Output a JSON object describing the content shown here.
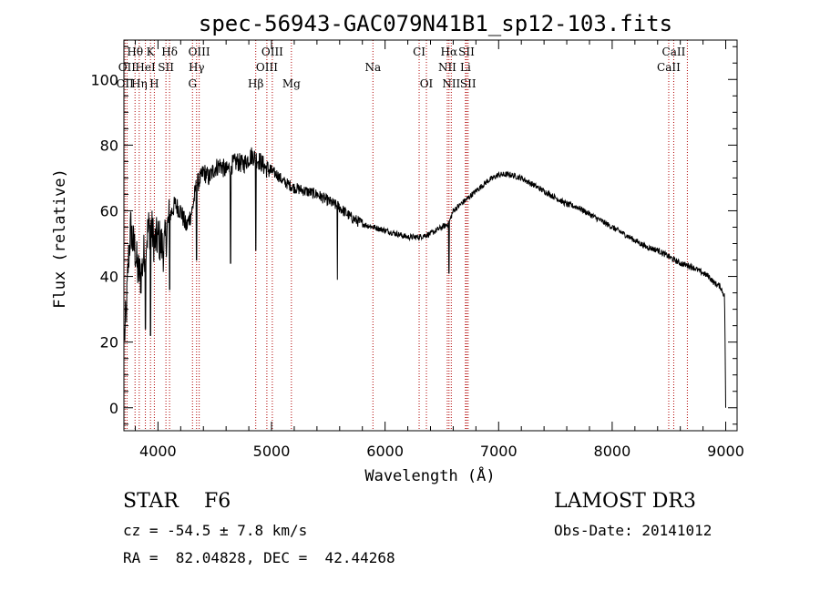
{
  "chart_data": {
    "type": "line",
    "title": "spec-56943-GAC079N41B1_sp12-103.fits",
    "xlabel": "Wavelength (Å)",
    "ylabel": "Flux (relative)",
    "xlim": [
      3700,
      9100
    ],
    "ylim": [
      -7,
      112
    ],
    "xticks": [
      4000,
      5000,
      6000,
      7000,
      8000,
      9000
    ],
    "yticks": [
      0,
      20,
      40,
      60,
      80,
      100
    ],
    "grid": false,
    "spectrum_anchors": {
      "x": [
        3700,
        3720,
        3740,
        3760,
        3780,
        3800,
        3820,
        3850,
        3870,
        3890,
        3920,
        3940,
        3970,
        4000,
        4050,
        4100,
        4150,
        4200,
        4250,
        4300,
        4340,
        4380,
        4400,
        4450,
        4500,
        4550,
        4600,
        4650,
        4700,
        4750,
        4800,
        4830,
        4861,
        4900,
        4950,
        5000,
        5050,
        5100,
        5150,
        5200,
        5300,
        5400,
        5500,
        5600,
        5700,
        5800,
        5900,
        6000,
        6100,
        6200,
        6300,
        6400,
        6500,
        6560,
        6600,
        6700,
        6800,
        6900,
        7000,
        7100,
        7200,
        7300,
        7400,
        7500,
        7600,
        7700,
        7800,
        7900,
        8000,
        8100,
        8200,
        8300,
        8400,
        8500,
        8600,
        8700,
        8800,
        8850,
        8900,
        8950,
        8990,
        9000
      ],
      "y": [
        20,
        28,
        45,
        55,
        50,
        48,
        42,
        40,
        45,
        50,
        55,
        55,
        50,
        52,
        48,
        58,
        62,
        60,
        55,
        60,
        68,
        70,
        72,
        70,
        73,
        74,
        72,
        74,
        75,
        74,
        76,
        77,
        76,
        75,
        73,
        72,
        71,
        69,
        68,
        67,
        66,
        65,
        63,
        61,
        58,
        56,
        55,
        54,
        53,
        52,
        52,
        53,
        55,
        56,
        60,
        63,
        66,
        69,
        71,
        71,
        70,
        68,
        66,
        64,
        62,
        61,
        59,
        57,
        55,
        53,
        51,
        49,
        48,
        46,
        44,
        43,
        41,
        40,
        38,
        37,
        34,
        0
      ]
    },
    "absorption_dips": [
      {
        "x": 3890,
        "y": 24
      },
      {
        "x": 3934,
        "y": 22
      },
      {
        "x": 4102,
        "y": 36
      },
      {
        "x": 4340,
        "y": 45
      },
      {
        "x": 4640,
        "y": 44
      },
      {
        "x": 4861,
        "y": 48
      },
      {
        "x": 5580,
        "y": 39
      },
      {
        "x": 6563,
        "y": 41
      }
    ],
    "lines": [
      {
        "label": "Hθ",
        "wavelength": 3798
      },
      {
        "label": "K",
        "wavelength": 3934
      },
      {
        "label": "Hδ",
        "wavelength": 4102
      },
      {
        "label": "OIII",
        "wavelength": 4363
      },
      {
        "label": "OIII",
        "wavelength": 5007
      },
      {
        "label": "CI",
        "wavelength": 6300
      },
      {
        "label": "Hα",
        "wavelength": 6563
      },
      {
        "label": "SII",
        "wavelength": 6717
      },
      {
        "label": "CaII",
        "wavelength": 8542
      },
      {
        "label": "OII",
        "wavelength": 3727
      },
      {
        "label": "HeI",
        "wavelength": 3889
      },
      {
        "label": "SII",
        "wavelength": 4070
      },
      {
        "label": "Hγ",
        "wavelength": 4340
      },
      {
        "label": "OIII",
        "wavelength": 4959
      },
      {
        "label": "Na",
        "wavelength": 5893
      },
      {
        "label": "NII",
        "wavelength": 6548
      },
      {
        "label": "Li",
        "wavelength": 6708
      },
      {
        "label": "CaII",
        "wavelength": 8498
      },
      {
        "label": "OII",
        "wavelength": 3710
      },
      {
        "label": "Hη",
        "wavelength": 3835
      },
      {
        "label": "H",
        "wavelength": 3968
      },
      {
        "label": "G",
        "wavelength": 4304
      },
      {
        "label": "Hβ",
        "wavelength": 4861
      },
      {
        "label": "Mg",
        "wavelength": 5175
      },
      {
        "label": "OI",
        "wavelength": 6364
      },
      {
        "label": "NII",
        "wavelength": 6583
      },
      {
        "label": "SII",
        "wavelength": 6731
      },
      {
        "label": "CaII",
        "wavelength": 8662
      }
    ]
  },
  "info": {
    "class_line": "STAR    F6",
    "survey": "LAMOST DR3",
    "cz_line": "cz = -54.5 ± 7.8 km/s",
    "obs_date": "Obs-Date: 20141012",
    "radec_line": "RA =  82.04828, DEC =  42.44268"
  },
  "colors": {
    "spectrum": "#000000",
    "line_marker": "#b00000",
    "axis": "#000000",
    "background": "#ffffff"
  }
}
